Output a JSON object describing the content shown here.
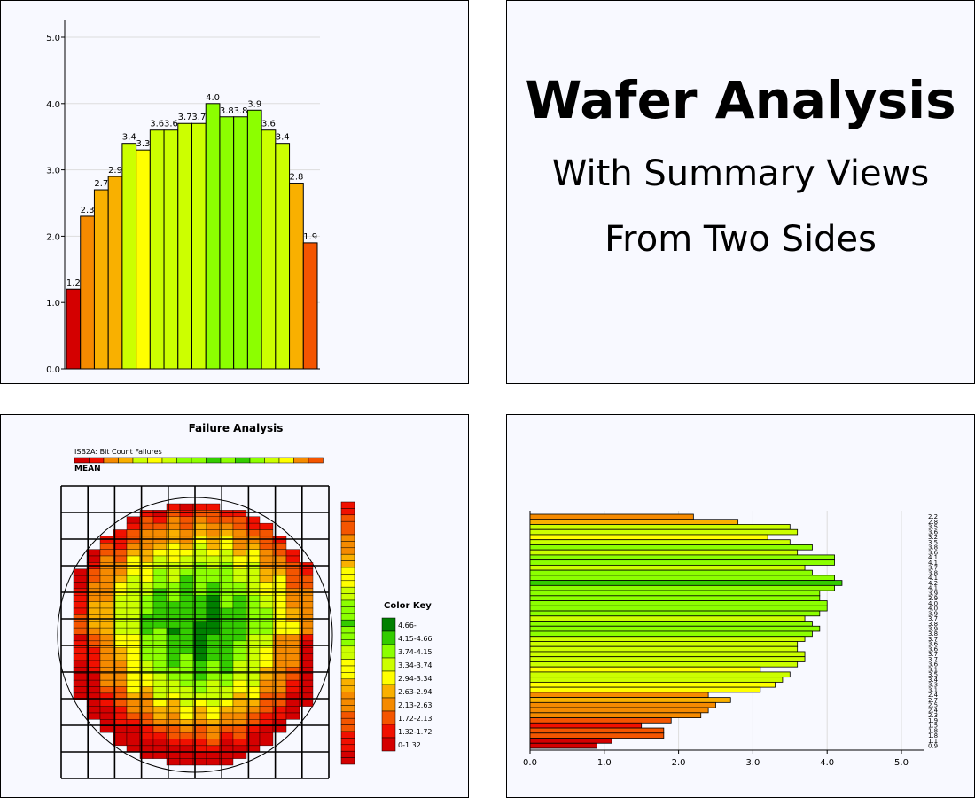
{
  "title": {
    "main": "Wafer Analysis",
    "line1": "With Summary Views",
    "line2": "From Two Sides"
  },
  "colors": {
    "bins": [
      "#d40000",
      "#f01000",
      "#f45500",
      "#f58a00",
      "#f9b000",
      "#ffff00",
      "#ccff00",
      "#8cff00",
      "#33cc00",
      "#008000"
    ]
  },
  "chart_data": [
    {
      "type": "bar",
      "name": "column-summary",
      "ylim": [
        0,
        5
      ],
      "yticks": [
        "0.0",
        "1.0",
        "2.0",
        "3.0",
        "4.0",
        "5.0"
      ],
      "values": [
        1.2,
        2.3,
        2.7,
        2.9,
        3.4,
        3.3,
        3.6,
        3.6,
        3.7,
        3.7,
        4.0,
        3.8,
        3.8,
        3.9,
        3.6,
        3.4,
        2.8,
        1.9
      ],
      "data_labels": [
        "1.2",
        "2.3",
        "2.7",
        "2.9",
        "3.4",
        "3.3",
        "3.6",
        "3.6",
        "3.7",
        "3.7",
        "4.0",
        "3.8",
        "3.8",
        "3.9",
        "3.6",
        "3.4",
        "2.8",
        "1.9"
      ],
      "grid": true
    },
    {
      "type": "heatmap",
      "name": "failure-analysis",
      "title": "Failure Analysis",
      "legend_title": "ISB2A: Bit Count Failures",
      "legend_stat": "MEAN",
      "color_key_title": "Color Key",
      "color_key": [
        "4.66-",
        "4.15-4.66",
        "3.74-4.15",
        "3.34-3.74",
        "2.94-3.34",
        "2.63-2.94",
        "2.13-2.63",
        "1.72-2.13",
        "1.32-1.72",
        "0-1.32"
      ]
    },
    {
      "type": "bar",
      "name": "row-summary",
      "orientation": "horizontal",
      "xlim": [
        0,
        5
      ],
      "xticks": [
        "0.0",
        "1.0",
        "2.0",
        "3.0",
        "4.0",
        "5.0"
      ],
      "values": [
        2.2,
        2.8,
        3.5,
        3.6,
        3.2,
        3.5,
        3.8,
        3.6,
        4.1,
        4.1,
        3.7,
        3.8,
        4.1,
        4.2,
        4.1,
        3.9,
        3.9,
        4.0,
        4.0,
        3.9,
        3.7,
        3.8,
        3.9,
        3.8,
        3.7,
        3.6,
        3.6,
        3.7,
        3.7,
        3.6,
        3.1,
        3.5,
        3.4,
        3.3,
        3.1,
        2.4,
        2.7,
        2.5,
        2.4,
        2.3,
        1.9,
        1.5,
        1.8,
        1.8,
        1.1,
        0.9
      ],
      "grid": true
    }
  ]
}
